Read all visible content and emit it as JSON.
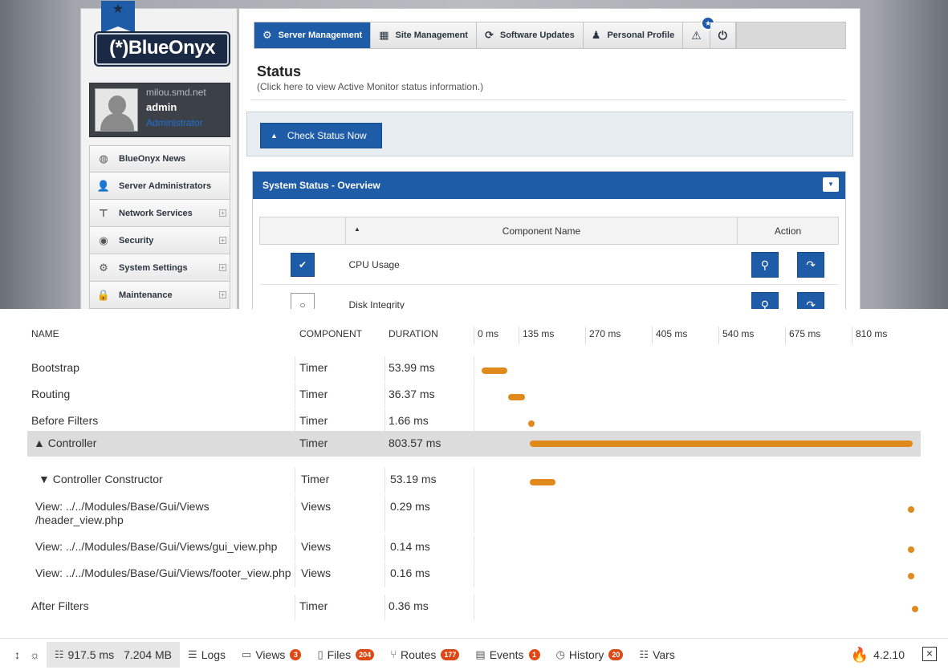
{
  "app": {
    "logo_text": "(*)BlueOnyx",
    "user": {
      "host": "milou.smd.net",
      "name": "admin",
      "role": "Administrator"
    },
    "nav": [
      {
        "label": "BlueOnyx News",
        "icon": "globe-icon",
        "expandable": false
      },
      {
        "label": "Server Administrators",
        "icon": "users-icon",
        "expandable": false
      },
      {
        "label": "Network Services",
        "icon": "network-icon",
        "expandable": true
      },
      {
        "label": "Security",
        "icon": "eye-icon",
        "expandable": true
      },
      {
        "label": "System Settings",
        "icon": "gear-icon",
        "expandable": true
      },
      {
        "label": "Maintenance",
        "icon": "lock-icon",
        "expandable": true
      }
    ],
    "tabs": [
      {
        "label": "Server Management",
        "icon": "gear-icon",
        "active": true
      },
      {
        "label": "Site Management",
        "icon": "grid-icon",
        "active": false
      },
      {
        "label": "Software Updates",
        "icon": "refresh-icon",
        "active": false
      },
      {
        "label": "Personal Profile",
        "icon": "person-icon",
        "active": false
      }
    ],
    "status_title": "Status",
    "status_subtitle": "(Click here to view Active Monitor status information.)",
    "check_button": "Check Status Now",
    "panel_title": "System Status - Overview",
    "table_headers": {
      "name": "Component Name",
      "action": "Action"
    },
    "components": [
      {
        "name": "CPU Usage",
        "ok": true
      },
      {
        "name": "Disk Integrity",
        "ok": false
      }
    ]
  },
  "debug": {
    "headers": {
      "name": "NAME",
      "component": "COMPONENT",
      "duration": "DURATION"
    },
    "ticks": [
      "0 ms",
      "135 ms",
      "270 ms",
      "405 ms",
      "540 ms",
      "675 ms",
      "810 ms"
    ],
    "rows": [
      {
        "name": "Bootstrap",
        "component": "Timer",
        "duration": "53.99 ms",
        "start_ms": 7,
        "dur_ms": 53.99
      },
      {
        "name": "Routing",
        "component": "Timer",
        "duration": "36.37 ms",
        "start_ms": 62,
        "dur_ms": 36.37
      },
      {
        "name": "Before Filters",
        "component": "Timer",
        "duration": "1.66 ms",
        "start_ms": 105,
        "dur_ms": 1.66
      },
      {
        "name": "▲ Controller",
        "component": "Timer",
        "duration": "803.57 ms",
        "start_ms": 108,
        "dur_ms": 803.57,
        "highlight": true
      },
      {
        "name": "▼ Controller Constructor",
        "component": "Timer",
        "duration": "53.19 ms",
        "start_ms": 108,
        "dur_ms": 53.19
      },
      {
        "name": "View: ../../Modules/Base/Gui/Views\n/header_view.php",
        "component": "Views",
        "duration": "0.29 ms",
        "start_ms": 900,
        "dur_ms": 0.29
      },
      {
        "name": "View: ../../Modules/Base/Gui/Views/gui_view.php",
        "component": "Views",
        "duration": "0.14 ms",
        "start_ms": 901,
        "dur_ms": 0.14
      },
      {
        "name": "View: ../../Modules/Base/Gui/Views/footer_view.php",
        "component": "Views",
        "duration": "0.16 ms",
        "start_ms": 901,
        "dur_ms": 0.16
      },
      {
        "name": "After Filters",
        "component": "Timer",
        "duration": "0.36 ms",
        "start_ms": 909,
        "dur_ms": 0.36
      }
    ],
    "toolbar": {
      "time": "917.5 ms",
      "memory": "7.204 MB",
      "logs": "Logs",
      "views": "Views",
      "views_count": "3",
      "files": "Files",
      "files_count": "204",
      "routes": "Routes",
      "routes_count": "177",
      "events": "Events",
      "events_count": "1",
      "history": "History",
      "history_count": "20",
      "vars": "Vars",
      "version": "4.2.10"
    },
    "accent": "#dd4814",
    "bar_color": "#e0891d"
  }
}
